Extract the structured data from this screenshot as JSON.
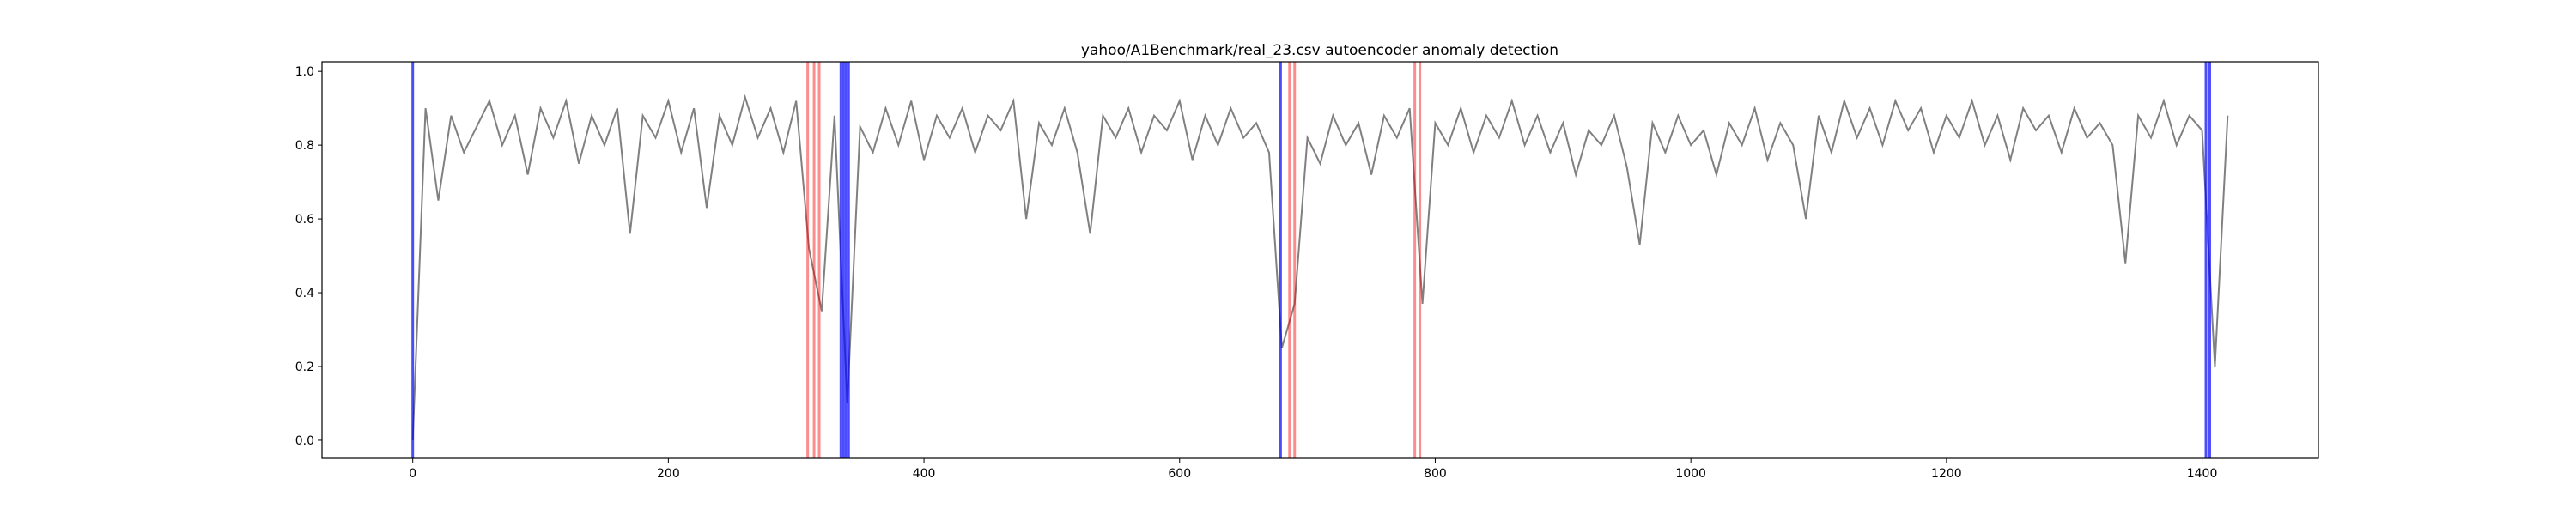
{
  "chart_data": {
    "type": "line",
    "title": "yahoo/A1Benchmark/real_23.csv autoencoder anomaly detection",
    "x": [
      0,
      10,
      20,
      30,
      40,
      50,
      60,
      70,
      80,
      90,
      100,
      110,
      120,
      130,
      140,
      150,
      160,
      170,
      180,
      190,
      200,
      210,
      220,
      230,
      240,
      250,
      260,
      270,
      280,
      290,
      300,
      310,
      320,
      330,
      340,
      350,
      360,
      370,
      380,
      390,
      400,
      410,
      420,
      430,
      440,
      450,
      460,
      470,
      480,
      490,
      500,
      510,
      520,
      530,
      540,
      550,
      560,
      570,
      580,
      590,
      600,
      610,
      620,
      630,
      640,
      650,
      660,
      670,
      680,
      690,
      700,
      710,
      720,
      730,
      740,
      750,
      760,
      770,
      780,
      790,
      800,
      810,
      820,
      830,
      840,
      850,
      860,
      870,
      880,
      890,
      900,
      910,
      920,
      930,
      940,
      950,
      960,
      970,
      980,
      990,
      1000,
      1010,
      1020,
      1030,
      1040,
      1050,
      1060,
      1070,
      1080,
      1090,
      1100,
      1110,
      1120,
      1130,
      1140,
      1150,
      1160,
      1170,
      1180,
      1190,
      1200,
      1210,
      1220,
      1230,
      1240,
      1250,
      1260,
      1270,
      1280,
      1290,
      1300,
      1310,
      1320,
      1330,
      1340,
      1350,
      1360,
      1370,
      1380,
      1390,
      1400,
      1410,
      1420
    ],
    "values": [
      0,
      0.9,
      0.65,
      0.88,
      0.78,
      0.85,
      0.92,
      0.8,
      0.88,
      0.72,
      0.9,
      0.82,
      0.92,
      0.75,
      0.88,
      0.8,
      0.9,
      0.56,
      0.88,
      0.82,
      0.92,
      0.78,
      0.9,
      0.63,
      0.88,
      0.8,
      0.93,
      0.82,
      0.9,
      0.78,
      0.92,
      0.52,
      0.35,
      0.88,
      0.1,
      0.85,
      0.78,
      0.9,
      0.8,
      0.92,
      0.76,
      0.88,
      0.82,
      0.9,
      0.78,
      0.88,
      0.84,
      0.92,
      0.6,
      0.86,
      0.8,
      0.9,
      0.78,
      0.56,
      0.88,
      0.82,
      0.9,
      0.78,
      0.88,
      0.84,
      0.92,
      0.76,
      0.88,
      0.8,
      0.9,
      0.82,
      0.86,
      0.78,
      0.25,
      0.37,
      0.82,
      0.75,
      0.88,
      0.8,
      0.86,
      0.72,
      0.88,
      0.82,
      0.9,
      0.37,
      0.86,
      0.8,
      0.9,
      0.78,
      0.88,
      0.82,
      0.92,
      0.8,
      0.88,
      0.78,
      0.86,
      0.72,
      0.84,
      0.8,
      0.88,
      0.74,
      0.53,
      0.86,
      0.78,
      0.88,
      0.8,
      0.84,
      0.72,
      0.86,
      0.8,
      0.9,
      0.76,
      0.86,
      0.8,
      0.6,
      0.88,
      0.78,
      0.92,
      0.82,
      0.9,
      0.8,
      0.92,
      0.84,
      0.9,
      0.78,
      0.88,
      0.82,
      0.92,
      0.8,
      0.88,
      0.76,
      0.9,
      0.84,
      0.88,
      0.78,
      0.9,
      0.82,
      0.86,
      0.8,
      0.48,
      0.88,
      0.82,
      0.92,
      0.8,
      0.88,
      0.84,
      0.2,
      0.88
    ],
    "color": "#808080",
    "vlines": [
      {
        "color": "#ff0000",
        "values": [
          309,
          314,
          318,
          686,
          690,
          784,
          788
        ]
      },
      {
        "color": "#0000ff",
        "values": [
          0,
          335,
          337,
          339,
          341,
          679,
          1403,
          1406
        ]
      }
    ],
    "xlim": [
      -71,
      1491
    ],
    "ylim": [
      -0.049,
      1.026
    ],
    "xticks": [
      0,
      200,
      400,
      600,
      800,
      1000,
      1200,
      1400
    ],
    "yticks": [
      {
        "value": 0,
        "label": "0.0"
      },
      {
        "value": 0.2,
        "label": "0.2"
      },
      {
        "value": 0.4,
        "label": "0.4"
      },
      {
        "value": 0.6,
        "label": "0.6"
      },
      {
        "value": 0.8,
        "label": "0.8"
      },
      {
        "value": 1,
        "label": "1.0"
      }
    ]
  }
}
